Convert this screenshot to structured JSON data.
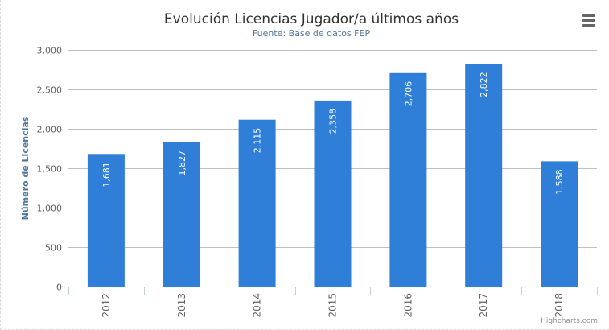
{
  "chart_data": {
    "type": "bar",
    "title": "Evolución Licencias Jugador/a últimos años",
    "subtitle": "Fuente: Base de datos FEP",
    "xlabel": "",
    "ylabel": "Número de Licencias",
    "categories": [
      "2012",
      "2013",
      "2014",
      "2015",
      "2016",
      "2017",
      "2018"
    ],
    "series": [
      {
        "values": [
          1681,
          1827,
          2115,
          2358,
          2706,
          2822,
          1588
        ],
        "labels": [
          "1,681",
          "1,827",
          "2,115",
          "2,358",
          "2,706",
          "2,822",
          "1,588"
        ]
      }
    ],
    "ylim": [
      0,
      3000
    ],
    "yticks": [
      0,
      500,
      1000,
      1500,
      2000,
      2500,
      3000
    ],
    "ytick_labels": [
      "0",
      "500",
      "1,000",
      "1,500",
      "2,000",
      "2,500",
      "3,000"
    ],
    "grid": true,
    "legend": "none",
    "data_label_orientation": "rotated-inside",
    "bar_color": "#2f7ed8"
  },
  "ui": {
    "menu_icon": "hamburger-menu-icon",
    "credits": "Highcharts.com"
  }
}
